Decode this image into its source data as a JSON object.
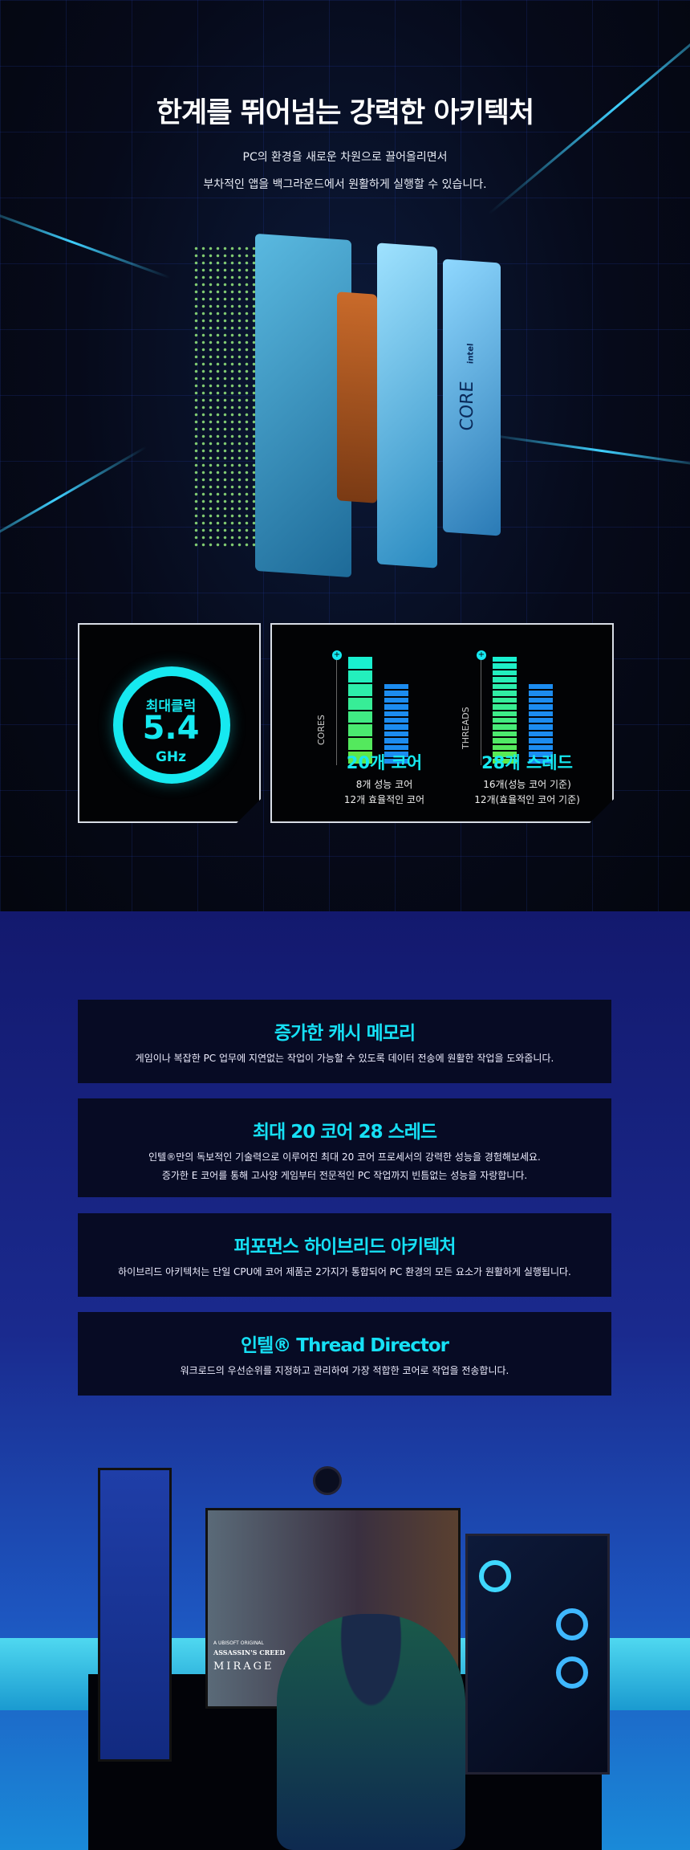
{
  "hero": {
    "title": "한계를 뛰어넘는 강력한 아키텍처",
    "subtitle_lines": [
      "PC의 환경을 새로운 차원으로 끌어올리면서",
      "부차적인 앱을 백그라운드에서 원활하게 실행할 수 있습니다."
    ],
    "cpu_logo": {
      "brand": "intel",
      "product": "CORE"
    }
  },
  "clock": {
    "label": "최대클럭",
    "value": "5.4",
    "unit": "GHz"
  },
  "cores": {
    "axis": "CORES",
    "title": "20개 코어",
    "lines": [
      "8개 성능 코어",
      "12개 효율적인 코어"
    ],
    "performance": 8,
    "efficient": 12
  },
  "threads": {
    "axis": "THREADS",
    "title": "28개 스레드",
    "lines": [
      "16개(성능 코어 기준)",
      "12개(효율적인 코어 기준)"
    ],
    "performance": 16,
    "efficient": 12
  },
  "colors": {
    "accent": "#16e9f0",
    "perf_top": "#19f0d0",
    "perf_bottom": "#5ee84a",
    "efficient": "#1c8cf0"
  },
  "features": [
    {
      "title": "증가한 캐시 메모리",
      "lines": [
        "게임이나 복잡한 PC 업무에 지연없는 작업이 가능할 수 있도록  데이터 전송에 원활한 작업을 도와줍니다."
      ]
    },
    {
      "title": "최대 20 코어 28 스레드",
      "lines": [
        "인텔®만의 독보적인 기술력으로 이루어진 최대 20 코어 프로세서의 강력한 성능을 경험해보세요.",
        "증가한 E 코어를 통해 고사양 게임부터 전문적인 PC 작업까지 빈틈없는 성능을 자랑합니다."
      ]
    },
    {
      "title": "퍼포먼스 하이브리드 아키텍처",
      "lines": [
        "하이브리드 아키텍처는 단일 CPU에 코어 제품군 2가지가 통합되어 PC 환경의 모든 요소가 원활하게 실행됩니다."
      ]
    },
    {
      "title": "인텔® Thread Director",
      "lines": [
        "워크로드의 우선순위를 지정하고 관리하여 가장 적합한 코어로 작업을 전송합니다."
      ]
    }
  ],
  "scene": {
    "game_publisher": "A UBISOFT ORIGINAL",
    "game_title": "ASSASSIN'S CREED",
    "game_subtitle": "MIRAGE"
  }
}
